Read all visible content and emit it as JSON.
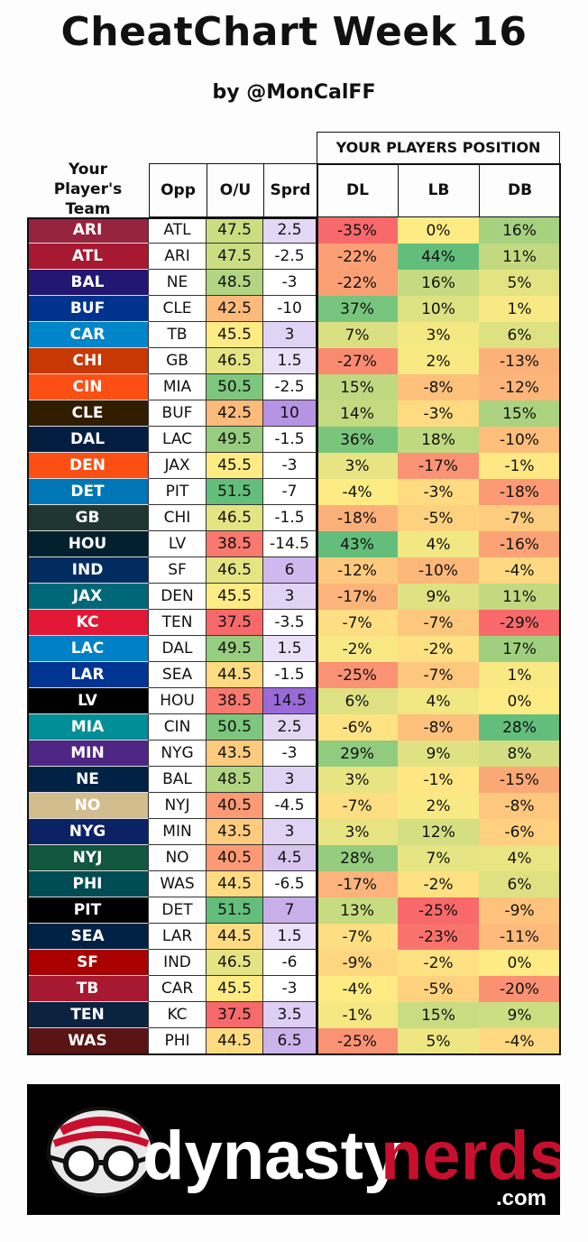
{
  "header": {
    "title": "CheatChart Week 16",
    "subtitle": "by @MonCalFF",
    "group_label": "YOUR PLAYERS POSITION",
    "col_team": "Your Player's Team",
    "col_opp": "Opp",
    "col_ou": "O/U",
    "col_sprd": "Sprd",
    "col_dl": "DL",
    "col_lb": "LB",
    "col_db": "DB"
  },
  "logo": {
    "text_main": "dynasty",
    "text_accent": "nerds",
    "text_suffix": ".com",
    "icon": "football-glasses-icon"
  },
  "colors": {
    "red": "#f8696b",
    "yellow": "#ffeb84",
    "green": "#63be7b",
    "spread_light": "#f3eefb",
    "spread_dark": "#9a6bd8"
  },
  "chart_data": {
    "type": "table",
    "columns": [
      "Your Player's Team",
      "Opp",
      "O/U",
      "Sprd",
      "DL",
      "LB",
      "DB"
    ],
    "rows": [
      {
        "team": "ARI",
        "team_color": "#97233f",
        "opp": "ATL",
        "ou": "47.5",
        "sprd": "2.5",
        "dl": "-35%",
        "lb": "0%",
        "db": "16%"
      },
      {
        "team": "ATL",
        "team_color": "#a71930",
        "opp": "ARI",
        "ou": "47.5",
        "sprd": "-2.5",
        "dl": "-22%",
        "lb": "44%",
        "db": "11%"
      },
      {
        "team": "BAL",
        "team_color": "#241773",
        "opp": "NE",
        "ou": "48.5",
        "sprd": "-3",
        "dl": "-22%",
        "lb": "16%",
        "db": "5%"
      },
      {
        "team": "BUF",
        "team_color": "#00338d",
        "opp": "CLE",
        "ou": "42.5",
        "sprd": "-10",
        "dl": "37%",
        "lb": "10%",
        "db": "1%"
      },
      {
        "team": "CAR",
        "team_color": "#0085ca",
        "opp": "TB",
        "ou": "45.5",
        "sprd": "3",
        "dl": "7%",
        "lb": "3%",
        "db": "6%"
      },
      {
        "team": "CHI",
        "team_color": "#c83803",
        "opp": "GB",
        "ou": "46.5",
        "sprd": "1.5",
        "dl": "-27%",
        "lb": "2%",
        "db": "-13%"
      },
      {
        "team": "CIN",
        "team_color": "#fb4f14",
        "opp": "MIA",
        "ou": "50.5",
        "sprd": "-2.5",
        "dl": "15%",
        "lb": "-8%",
        "db": "-12%"
      },
      {
        "team": "CLE",
        "team_color": "#311d00",
        "opp": "BUF",
        "ou": "42.5",
        "sprd": "10",
        "dl": "14%",
        "lb": "-3%",
        "db": "15%"
      },
      {
        "team": "DAL",
        "team_color": "#041e42",
        "opp": "LAC",
        "ou": "49.5",
        "sprd": "-1.5",
        "dl": "36%",
        "lb": "18%",
        "db": "-10%"
      },
      {
        "team": "DEN",
        "team_color": "#fb4f14",
        "opp": "JAX",
        "ou": "45.5",
        "sprd": "-3",
        "dl": "3%",
        "lb": "-17%",
        "db": "-1%"
      },
      {
        "team": "DET",
        "team_color": "#0076b6",
        "opp": "PIT",
        "ou": "51.5",
        "sprd": "-7",
        "dl": "-4%",
        "lb": "-3%",
        "db": "-18%"
      },
      {
        "team": "GB",
        "team_color": "#203731",
        "opp": "CHI",
        "ou": "46.5",
        "sprd": "-1.5",
        "dl": "-18%",
        "lb": "-5%",
        "db": "-7%"
      },
      {
        "team": "HOU",
        "team_color": "#03202f",
        "opp": "LV",
        "ou": "38.5",
        "sprd": "-14.5",
        "dl": "43%",
        "lb": "4%",
        "db": "-16%"
      },
      {
        "team": "IND",
        "team_color": "#002c5f",
        "opp": "SF",
        "ou": "46.5",
        "sprd": "6",
        "dl": "-12%",
        "lb": "-10%",
        "db": "-4%"
      },
      {
        "team": "JAX",
        "team_color": "#006778",
        "opp": "DEN",
        "ou": "45.5",
        "sprd": "3",
        "dl": "-17%",
        "lb": "9%",
        "db": "11%"
      },
      {
        "team": "KC",
        "team_color": "#e31837",
        "opp": "TEN",
        "ou": "37.5",
        "sprd": "-3.5",
        "dl": "-7%",
        "lb": "-7%",
        "db": "-29%"
      },
      {
        "team": "LAC",
        "team_color": "#0080c6",
        "opp": "DAL",
        "ou": "49.5",
        "sprd": "1.5",
        "dl": "-2%",
        "lb": "-2%",
        "db": "17%"
      },
      {
        "team": "LAR",
        "team_color": "#003594",
        "opp": "SEA",
        "ou": "44.5",
        "sprd": "-1.5",
        "dl": "-25%",
        "lb": "-7%",
        "db": "1%"
      },
      {
        "team": "LV",
        "team_color": "#000000",
        "opp": "HOU",
        "ou": "38.5",
        "sprd": "14.5",
        "dl": "6%",
        "lb": "4%",
        "db": "0%"
      },
      {
        "team": "MIA",
        "team_color": "#008e97",
        "opp": "CIN",
        "ou": "50.5",
        "sprd": "2.5",
        "dl": "-6%",
        "lb": "-8%",
        "db": "28%"
      },
      {
        "team": "MIN",
        "team_color": "#4f2683",
        "opp": "NYG",
        "ou": "43.5",
        "sprd": "-3",
        "dl": "29%",
        "lb": "9%",
        "db": "8%"
      },
      {
        "team": "NE",
        "team_color": "#002244",
        "opp": "BAL",
        "ou": "48.5",
        "sprd": "3",
        "dl": "3%",
        "lb": "-1%",
        "db": "-15%"
      },
      {
        "team": "NO",
        "team_color": "#d3bc8d",
        "opp": "NYJ",
        "ou": "40.5",
        "sprd": "-4.5",
        "dl": "-7%",
        "lb": "2%",
        "db": "-8%"
      },
      {
        "team": "NYG",
        "team_color": "#0b2265",
        "opp": "MIN",
        "ou": "43.5",
        "sprd": "3",
        "dl": "3%",
        "lb": "12%",
        "db": "-6%"
      },
      {
        "team": "NYJ",
        "team_color": "#125740",
        "opp": "NO",
        "ou": "40.5",
        "sprd": "4.5",
        "dl": "28%",
        "lb": "7%",
        "db": "4%"
      },
      {
        "team": "PHI",
        "team_color": "#004c54",
        "opp": "WAS",
        "ou": "44.5",
        "sprd": "-6.5",
        "dl": "-17%",
        "lb": "-2%",
        "db": "6%"
      },
      {
        "team": "PIT",
        "team_color": "#000000",
        "opp": "DET",
        "ou": "51.5",
        "sprd": "7",
        "dl": "13%",
        "lb": "-25%",
        "db": "-9%"
      },
      {
        "team": "SEA",
        "team_color": "#002244",
        "opp": "LAR",
        "ou": "44.5",
        "sprd": "1.5",
        "dl": "-7%",
        "lb": "-23%",
        "db": "-11%"
      },
      {
        "team": "SF",
        "team_color": "#aa0000",
        "opp": "IND",
        "ou": "46.5",
        "sprd": "-6",
        "dl": "-9%",
        "lb": "-2%",
        "db": "0%"
      },
      {
        "team": "TB",
        "team_color": "#a71930",
        "opp": "CAR",
        "ou": "45.5",
        "sprd": "-3",
        "dl": "-4%",
        "lb": "-5%",
        "db": "-20%"
      },
      {
        "team": "TEN",
        "team_color": "#0c2340",
        "opp": "KC",
        "ou": "37.5",
        "sprd": "3.5",
        "dl": "-1%",
        "lb": "15%",
        "db": "9%"
      },
      {
        "team": "WAS",
        "team_color": "#5a1414",
        "opp": "PHI",
        "ou": "44.5",
        "sprd": "6.5",
        "dl": "-25%",
        "lb": "5%",
        "db": "-4%"
      }
    ]
  }
}
